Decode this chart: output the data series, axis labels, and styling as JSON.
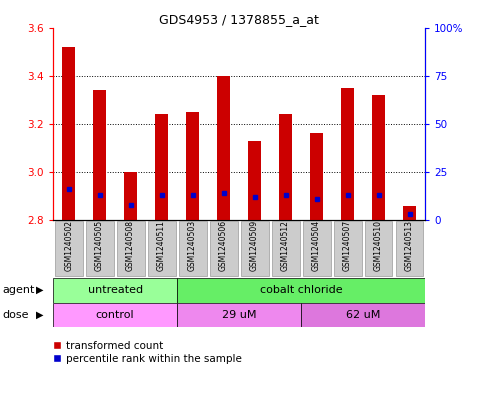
{
  "title": "GDS4953 / 1378855_a_at",
  "samples": [
    "GSM1240502",
    "GSM1240505",
    "GSM1240508",
    "GSM1240511",
    "GSM1240503",
    "GSM1240506",
    "GSM1240509",
    "GSM1240512",
    "GSM1240504",
    "GSM1240507",
    "GSM1240510",
    "GSM1240513"
  ],
  "transformed_counts": [
    3.52,
    3.34,
    3.0,
    3.24,
    3.25,
    3.4,
    3.13,
    3.24,
    3.16,
    3.35,
    3.32,
    2.86
  ],
  "percentile_ranks": [
    16,
    13,
    8,
    13,
    13,
    14,
    12,
    13,
    11,
    13,
    13,
    3
  ],
  "ylim_left": [
    2.8,
    3.6
  ],
  "ylim_right": [
    0,
    100
  ],
  "yticks_left": [
    2.8,
    3.0,
    3.2,
    3.4,
    3.6
  ],
  "yticks_right": [
    0,
    25,
    50,
    75,
    100
  ],
  "bar_color": "#cc0000",
  "blue_color": "#0000cc",
  "bar_bottom": 2.8,
  "agent_groups": [
    {
      "label": "untreated",
      "start": 0,
      "end": 4,
      "color": "#99ff99"
    },
    {
      "label": "cobalt chloride",
      "start": 4,
      "end": 12,
      "color": "#66ee66"
    }
  ],
  "dose_groups": [
    {
      "label": "control",
      "start": 0,
      "end": 4,
      "color": "#ff99ff"
    },
    {
      "label": "29 uM",
      "start": 4,
      "end": 8,
      "color": "#ee88ee"
    },
    {
      "label": "62 uM",
      "start": 8,
      "end": 12,
      "color": "#dd77dd"
    }
  ],
  "legend_red": "transformed count",
  "legend_blue": "percentile rank within the sample",
  "xlabel_agent": "agent",
  "xlabel_dose": "dose",
  "tick_label_bg": "#cccccc",
  "fig_bg": "#ffffff",
  "grid_ticks": [
    3.0,
    3.2,
    3.4
  ],
  "bar_width": 0.4
}
